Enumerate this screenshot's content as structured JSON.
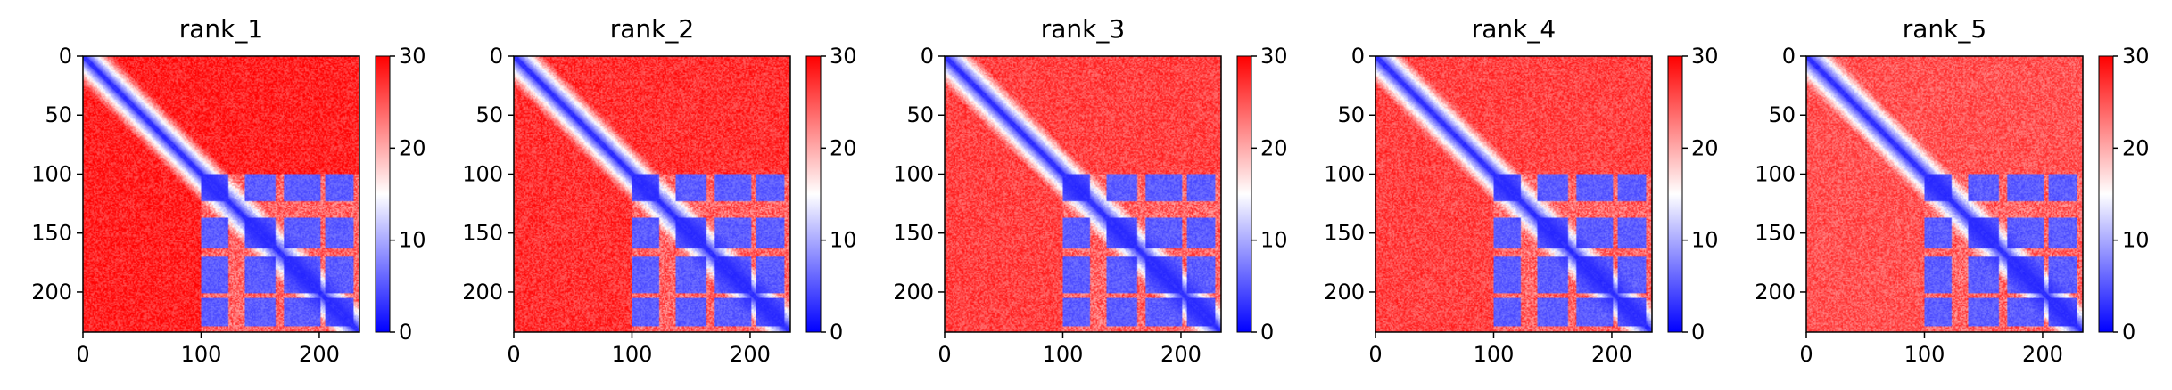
{
  "chart_data": [
    {
      "type": "heatmap",
      "title": "rank_1",
      "n": 234,
      "xlim": [
        0,
        234
      ],
      "ylim": [
        234,
        0
      ],
      "xticks": [
        0,
        100,
        200
      ],
      "yticks": [
        0,
        50,
        100,
        150,
        200
      ],
      "colorbar": {
        "min": 0,
        "max": 30,
        "ticks": [
          0,
          10,
          20,
          30
        ],
        "colormap": "bwr",
        "low_color": "#0000ff",
        "mid_color": "#ffffff",
        "high_color": "#ff0000"
      },
      "structure": {
        "diagonal_value": 2,
        "domain_start": 100,
        "domain_blocks": [
          [
            100,
            122
          ],
          [
            137,
            162
          ],
          [
            170,
            200
          ],
          [
            205,
            228
          ]
        ],
        "block_value": 4,
        "gap_value": 20,
        "off_domain_value": 28
      }
    },
    {
      "type": "heatmap",
      "title": "rank_2",
      "n": 234,
      "xlim": [
        0,
        234
      ],
      "ylim": [
        234,
        0
      ],
      "xticks": [
        0,
        100,
        200
      ],
      "yticks": [
        0,
        50,
        100,
        150,
        200
      ],
      "colorbar": {
        "min": 0,
        "max": 30,
        "ticks": [
          0,
          10,
          20,
          30
        ],
        "colormap": "bwr",
        "low_color": "#0000ff",
        "mid_color": "#ffffff",
        "high_color": "#ff0000"
      },
      "structure": {
        "diagonal_value": 2,
        "domain_start": 100,
        "domain_blocks": [
          [
            100,
            122
          ],
          [
            137,
            162
          ],
          [
            170,
            200
          ],
          [
            205,
            228
          ]
        ],
        "block_value": 4,
        "gap_value": 20,
        "off_domain_value": 27
      }
    },
    {
      "type": "heatmap",
      "title": "rank_3",
      "n": 234,
      "xlim": [
        0,
        234
      ],
      "ylim": [
        234,
        0
      ],
      "xticks": [
        0,
        100,
        200
      ],
      "yticks": [
        0,
        50,
        100,
        150,
        200
      ],
      "colorbar": {
        "min": 0,
        "max": 30,
        "ticks": [
          0,
          10,
          20,
          30
        ],
        "colormap": "bwr",
        "low_color": "#0000ff",
        "mid_color": "#ffffff",
        "high_color": "#ff0000"
      },
      "structure": {
        "diagonal_value": 2,
        "domain_start": 100,
        "domain_blocks": [
          [
            100,
            122
          ],
          [
            137,
            162
          ],
          [
            170,
            200
          ],
          [
            205,
            228
          ]
        ],
        "block_value": 4,
        "gap_value": 20,
        "off_domain_value": 26
      }
    },
    {
      "type": "heatmap",
      "title": "rank_4",
      "n": 234,
      "xlim": [
        0,
        234
      ],
      "ylim": [
        234,
        0
      ],
      "xticks": [
        0,
        100,
        200
      ],
      "yticks": [
        0,
        50,
        100,
        150,
        200
      ],
      "colorbar": {
        "min": 0,
        "max": 30,
        "ticks": [
          0,
          10,
          20,
          30
        ],
        "colormap": "bwr",
        "low_color": "#0000ff",
        "mid_color": "#ffffff",
        "high_color": "#ff0000"
      },
      "structure": {
        "diagonal_value": 2,
        "domain_start": 100,
        "domain_blocks": [
          [
            100,
            122
          ],
          [
            137,
            162
          ],
          [
            170,
            200
          ],
          [
            205,
            228
          ]
        ],
        "block_value": 4,
        "gap_value": 20,
        "off_domain_value": 26
      }
    },
    {
      "type": "heatmap",
      "title": "rank_5",
      "n": 234,
      "xlim": [
        0,
        234
      ],
      "ylim": [
        234,
        0
      ],
      "xticks": [
        0,
        100,
        200
      ],
      "yticks": [
        0,
        50,
        100,
        150,
        200
      ],
      "colorbar": {
        "min": 0,
        "max": 30,
        "ticks": [
          0,
          10,
          20,
          30
        ],
        "colormap": "bwr",
        "low_color": "#0000ff",
        "mid_color": "#ffffff",
        "high_color": "#ff0000"
      },
      "structure": {
        "diagonal_value": 2,
        "domain_start": 100,
        "domain_blocks": [
          [
            100,
            122
          ],
          [
            137,
            162
          ],
          [
            170,
            200
          ],
          [
            205,
            228
          ]
        ],
        "block_value": 4,
        "gap_value": 20,
        "off_domain_value": 25
      }
    }
  ]
}
